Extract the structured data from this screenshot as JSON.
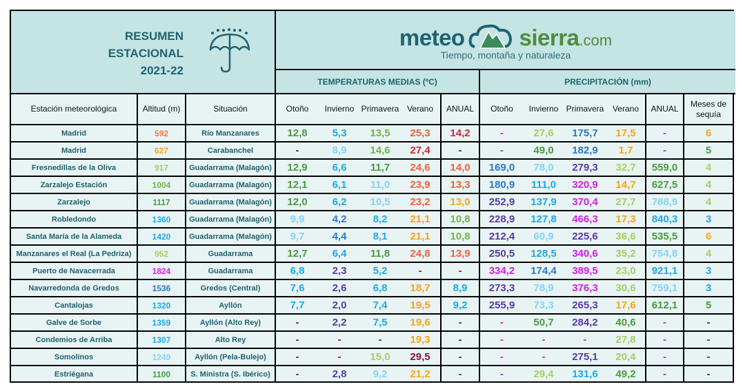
{
  "title": {
    "line1": "RESUMEN",
    "line2": "ESTACIONAL",
    "line3": "2021-22",
    "icon": "umbrella-rain-icon"
  },
  "logo": {
    "word1": "meteo",
    "word2": "sierra",
    "tld": ".com",
    "tagline": "Tiempo, montaña y naturaleza",
    "icon": "cloud-mountain-icon"
  },
  "groups": {
    "temp": "TEMPERATURAS MEDIAS (ºC)",
    "precip": "PRECIPITACIÓN (mm)"
  },
  "columns": {
    "station": "Estación meteorológica",
    "altitude": "Altitud (m)",
    "situation": "Situación",
    "temp": [
      "Otoño",
      "Invierno",
      "Primavera",
      "Verano",
      "ANUAL"
    ],
    "precip": [
      "Otoño",
      "Invierno",
      "Primavera",
      "Verano",
      "ANUAL"
    ],
    "drought": "Meses de sequía"
  },
  "palette": {
    "G": "#4a9a3d",
    "G2": "#72b545",
    "LG": "#a5cf64",
    "B": "#1ea8e6",
    "LB": "#86d3f8",
    "DB": "#2b78cc",
    "R": "#f0603c",
    "DR": "#d0283a",
    "O": "#f9a31b",
    "AO": "#f37b4a",
    "P": "#5a38a8",
    "M": "#d41ee3",
    "MR": "#8c1244"
  },
  "rows": [
    {
      "station": "Madrid",
      "alt": [
        "592",
        "AO"
      ],
      "situation": "Río Manzanares",
      "temp": [
        [
          "12,8",
          "G"
        ],
        [
          "5,3",
          "B"
        ],
        [
          "13,5",
          "G2"
        ],
        [
          "25,3",
          "R"
        ],
        [
          "14,2",
          "DR"
        ]
      ],
      "precip": [
        [
          "-",
          "M"
        ],
        [
          "27,6",
          "LG"
        ],
        [
          "175,7",
          "DB"
        ],
        [
          "17,5",
          "O"
        ],
        [
          "-",
          "M"
        ]
      ],
      "drought": [
        "6",
        "O"
      ]
    },
    {
      "station": "Madrid",
      "alt": [
        "627",
        "O"
      ],
      "situation": "Carabanchel",
      "temp": [
        [
          "-",
          "MR"
        ],
        [
          "8,9",
          "LB"
        ],
        [
          "14,6",
          "G2"
        ],
        [
          "27,4",
          "DR"
        ],
        [
          "-",
          "MR"
        ]
      ],
      "precip": [
        [
          "-",
          "M"
        ],
        [
          "49,0",
          "G"
        ],
        [
          "182,9",
          "DB"
        ],
        [
          "1,7",
          "O"
        ],
        [
          "-",
          "M"
        ]
      ],
      "drought": [
        "5",
        "G"
      ]
    },
    {
      "station": "Fresnedillas de la Oliva",
      "alt": [
        "917",
        "LG"
      ],
      "situation": "Guadarrama (Malagón)",
      "temp": [
        [
          "12,9",
          "G"
        ],
        [
          "6,6",
          "B"
        ],
        [
          "11,7",
          "G"
        ],
        [
          "24,6",
          "R"
        ],
        [
          "14,0",
          "R"
        ]
      ],
      "precip": [
        [
          "169,0",
          "DB"
        ],
        [
          "78,0",
          "LB"
        ],
        [
          "279,3",
          "P"
        ],
        [
          "32,7",
          "LG"
        ],
        [
          "559,0",
          "G"
        ]
      ],
      "drought": [
        "4",
        "LG"
      ]
    },
    {
      "station": "Zarzalejo Estación",
      "alt": [
        "1004",
        "G2"
      ],
      "situation": "Guadarrama (Malagón)",
      "temp": [
        [
          "12,1",
          "G"
        ],
        [
          "6,1",
          "B"
        ],
        [
          "11,0",
          "LB"
        ],
        [
          "23,9",
          "R"
        ],
        [
          "13,3",
          "R"
        ]
      ],
      "precip": [
        [
          "180,9",
          "DB"
        ],
        [
          "111,0",
          "B"
        ],
        [
          "320,9",
          "M"
        ],
        [
          "14,7",
          "O"
        ],
        [
          "627,5",
          "G"
        ]
      ],
      "drought": [
        "4",
        "LG"
      ]
    },
    {
      "station": "Zarzalejo",
      "alt": [
        "1117",
        "G"
      ],
      "situation": "Guadarrama (Malagón)",
      "temp": [
        [
          "12,0",
          "G"
        ],
        [
          "6,2",
          "B"
        ],
        [
          "10,5",
          "LB"
        ],
        [
          "23,2",
          "R"
        ],
        [
          "13,0",
          "O"
        ]
      ],
      "precip": [
        [
          "252,9",
          "P"
        ],
        [
          "137,9",
          "B"
        ],
        [
          "370,4",
          "M"
        ],
        [
          "27,7",
          "LG"
        ],
        [
          "788,9",
          "LB"
        ]
      ],
      "drought": [
        "4",
        "LG"
      ]
    },
    {
      "station": "Robledondo",
      "alt": [
        "1360",
        "B"
      ],
      "situation": "Guadarrama (Malagón)",
      "temp": [
        [
          "9,9",
          "LB"
        ],
        [
          "4,2",
          "DB"
        ],
        [
          "8,2",
          "B"
        ],
        [
          "21,1",
          "O"
        ],
        [
          "10,8",
          "G2"
        ]
      ],
      "precip": [
        [
          "228,9",
          "P"
        ],
        [
          "127,8",
          "B"
        ],
        [
          "466,3",
          "M"
        ],
        [
          "17,3",
          "O"
        ],
        [
          "840,3",
          "B"
        ]
      ],
      "drought": [
        "3",
        "B"
      ]
    },
    {
      "station": "Santa María de la Alameda",
      "alt": [
        "1420",
        "B"
      ],
      "situation": "Guadarrama (Malagón)",
      "temp": [
        [
          "9,7",
          "LB"
        ],
        [
          "4,4",
          "DB"
        ],
        [
          "8,1",
          "B"
        ],
        [
          "21,1",
          "O"
        ],
        [
          "10,8",
          "G2"
        ]
      ],
      "precip": [
        [
          "212,4",
          "P"
        ],
        [
          "60,9",
          "LB"
        ],
        [
          "225,6",
          "P"
        ],
        [
          "36,6",
          "LG"
        ],
        [
          "535,5",
          "G"
        ]
      ],
      "drought": [
        "6",
        "O"
      ]
    },
    {
      "station": "Manzanares el Real (La Pedriza)",
      "alt": [
        "952",
        "LG"
      ],
      "situation": "Guadarrama",
      "temp": [
        [
          "12,7",
          "G"
        ],
        [
          "6,4",
          "B"
        ],
        [
          "11,8",
          "G"
        ],
        [
          "24,8",
          "R"
        ],
        [
          "13,9",
          "R"
        ]
      ],
      "precip": [
        [
          "250,5",
          "P"
        ],
        [
          "128,5",
          "B"
        ],
        [
          "340,6",
          "M"
        ],
        [
          "35,2",
          "LG"
        ],
        [
          "754,8",
          "LB"
        ]
      ],
      "drought": [
        "4",
        "LG"
      ]
    },
    {
      "station": "Puerto de Navacerrada",
      "alt": [
        "1824",
        "M"
      ],
      "situation": "Guadarrama",
      "temp": [
        [
          "6,8",
          "B"
        ],
        [
          "2,3",
          "P"
        ],
        [
          "5,2",
          "B"
        ],
        [
          "-",
          "MR"
        ],
        [
          "-",
          "MR"
        ]
      ],
      "precip": [
        [
          "334,2",
          "M"
        ],
        [
          "174,4",
          "DB"
        ],
        [
          "389,5",
          "M"
        ],
        [
          "23,0",
          "LG"
        ],
        [
          "921,1",
          "B"
        ]
      ],
      "drought": [
        "3",
        "B"
      ]
    },
    {
      "station": "Navarredonda de Gredos",
      "alt": [
        "1536",
        "DB"
      ],
      "situation": "Gredos (Central)",
      "temp": [
        [
          "7,6",
          "B"
        ],
        [
          "2,6",
          "P"
        ],
        [
          "6,8",
          "B"
        ],
        [
          "18,7",
          "O"
        ],
        [
          "8,9",
          "B"
        ]
      ],
      "precip": [
        [
          "273,3",
          "P"
        ],
        [
          "78,9",
          "LB"
        ],
        [
          "376,3",
          "M"
        ],
        [
          "30,6",
          "LG"
        ],
        [
          "759,1",
          "LB"
        ]
      ],
      "drought": [
        "3",
        "B"
      ]
    },
    {
      "station": "Cantalojas",
      "alt": [
        "1320",
        "B"
      ],
      "situation": "Ayllón",
      "temp": [
        [
          "7,7",
          "B"
        ],
        [
          "2,0",
          "P"
        ],
        [
          "7,4",
          "B"
        ],
        [
          "19,5",
          "O"
        ],
        [
          "9,2",
          "B"
        ]
      ],
      "precip": [
        [
          "255,9",
          "P"
        ],
        [
          "73,3",
          "LB"
        ],
        [
          "265,3",
          "P"
        ],
        [
          "17,6",
          "O"
        ],
        [
          "612,1",
          "G"
        ]
      ],
      "drought": [
        "5",
        "G"
      ]
    },
    {
      "station": "Galve de Sorbe",
      "alt": [
        "1359",
        "B"
      ],
      "situation": "Ayllón (Alto Rey)",
      "temp": [
        [
          "-",
          "MR"
        ],
        [
          "2,2",
          "P"
        ],
        [
          "7,5",
          "B"
        ],
        [
          "19,6",
          "O"
        ],
        [
          "-",
          "MR"
        ]
      ],
      "precip": [
        [
          "-",
          "M"
        ],
        [
          "50,7",
          "G"
        ],
        [
          "284,2",
          "P"
        ],
        [
          "40,6",
          "G"
        ],
        [
          "-",
          "M"
        ]
      ],
      "drought": [
        "-",
        "MR"
      ]
    },
    {
      "station": "Condemios de Arriba",
      "alt": [
        "1307",
        "B"
      ],
      "situation": "Alto Rey",
      "temp": [
        [
          "-",
          "MR"
        ],
        [
          "-",
          "MR"
        ],
        [
          "-",
          "MR"
        ],
        [
          "19,3",
          "O"
        ],
        [
          "-",
          "MR"
        ]
      ],
      "precip": [
        [
          "-",
          "M"
        ],
        [
          "-",
          "M"
        ],
        [
          "-",
          "M"
        ],
        [
          "27,8",
          "LG"
        ],
        [
          "-",
          "M"
        ]
      ],
      "drought": [
        "-",
        "MR"
      ]
    },
    {
      "station": "Somolinos",
      "alt": [
        "1249",
        "LB"
      ],
      "situation": "Ayllón (Pela-Bulejo)",
      "temp": [
        [
          "-",
          "MR"
        ],
        [
          "-",
          "MR"
        ],
        [
          "15,0",
          "LG"
        ],
        [
          "29,5",
          "MR"
        ],
        [
          "-",
          "MR"
        ]
      ],
      "precip": [
        [
          "-",
          "M"
        ],
        [
          "-",
          "M"
        ],
        [
          "275,1",
          "P"
        ],
        [
          "20,4",
          "LG"
        ],
        [
          "-",
          "M"
        ]
      ],
      "drought": [
        "-",
        "MR"
      ]
    },
    {
      "station": "Estriégana",
      "alt": [
        "1100",
        "G"
      ],
      "situation": "S. Ministra (S. Ibérico)",
      "temp": [
        [
          "-",
          "MR"
        ],
        [
          "2,8",
          "P"
        ],
        [
          "9,2",
          "LB"
        ],
        [
          "21,2",
          "O"
        ],
        [
          "-",
          "MR"
        ]
      ],
      "precip": [
        [
          "-",
          "M"
        ],
        [
          "29,4",
          "LG"
        ],
        [
          "131,6",
          "B"
        ],
        [
          "49,2",
          "G"
        ],
        [
          "-",
          "M"
        ]
      ],
      "drought": [
        "-",
        "MR"
      ]
    }
  ]
}
